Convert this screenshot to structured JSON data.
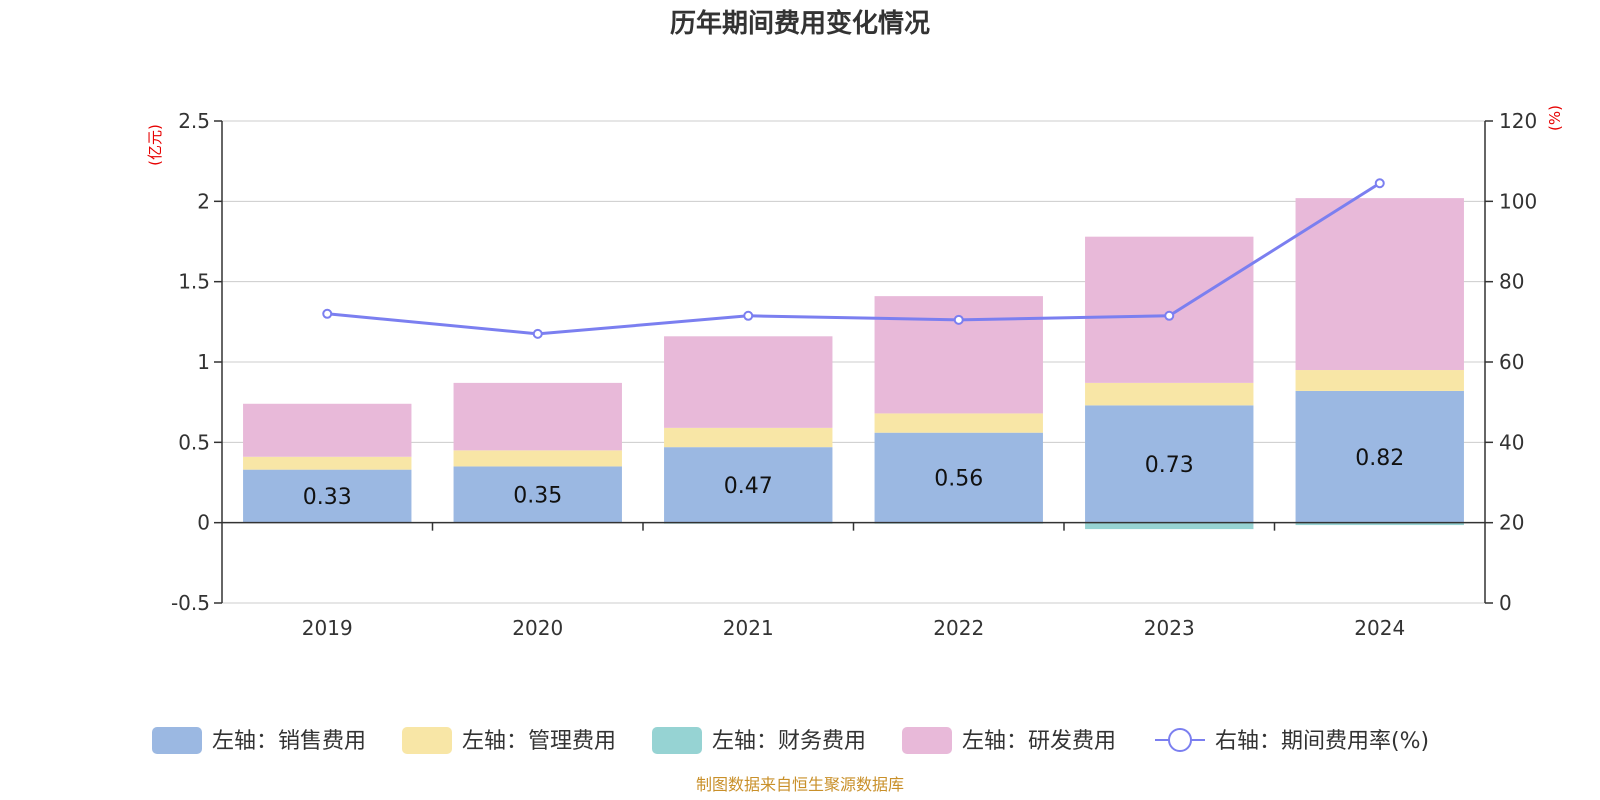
{
  "chart_data": {
    "type": "bar",
    "title": "历年期间费用变化情况",
    "categories": [
      "2019",
      "2020",
      "2021",
      "2022",
      "2023",
      "2024"
    ],
    "left_axis": {
      "unit": "(亿元)",
      "ylim": [
        -0.5,
        2.5
      ],
      "ticks": [
        -0.5,
        0,
        0.5,
        1,
        1.5,
        2,
        2.5
      ],
      "tick_labels": [
        "-0.5",
        "0",
        "0.5",
        "1",
        "1.5",
        "2",
        "2.5"
      ]
    },
    "right_axis": {
      "unit": "(%)",
      "ylim": [
        0,
        120
      ],
      "ticks": [
        0,
        20,
        40,
        60,
        80,
        100,
        120
      ],
      "tick_labels": [
        "0",
        "20",
        "40",
        "60",
        "80",
        "100",
        "120"
      ]
    },
    "series": [
      {
        "name": "左轴：销售费用",
        "type": "bar",
        "axis": "left",
        "color": "#9bb8e2",
        "values": [
          0.33,
          0.35,
          0.47,
          0.56,
          0.73,
          0.82
        ],
        "labels": [
          "0.33",
          "0.35",
          "0.47",
          "0.56",
          "0.73",
          "0.82"
        ]
      },
      {
        "name": "左轴：管理费用",
        "type": "bar",
        "axis": "left",
        "color": "#f8e6a6",
        "values": [
          0.08,
          0.1,
          0.12,
          0.12,
          0.14,
          0.13
        ]
      },
      {
        "name": "左轴：财务费用",
        "type": "bar",
        "axis": "left",
        "color": "#96d3d3",
        "values": [
          0.0,
          0.0,
          -0.005,
          -0.005,
          -0.04,
          -0.015
        ]
      },
      {
        "name": "左轴：研发费用",
        "type": "bar",
        "axis": "left",
        "color": "#e8b9d9",
        "values": [
          0.33,
          0.42,
          0.57,
          0.73,
          0.91,
          1.07
        ]
      },
      {
        "name": "右轴：期间费用率(%)",
        "type": "line",
        "axis": "right",
        "color": "#7b7ff0",
        "values": [
          72.0,
          67.0,
          71.5,
          70.5,
          71.5,
          104.5
        ]
      }
    ],
    "grid": true,
    "legend_position": "bottom"
  },
  "source_note": "制图数据来自恒生聚源数据库"
}
